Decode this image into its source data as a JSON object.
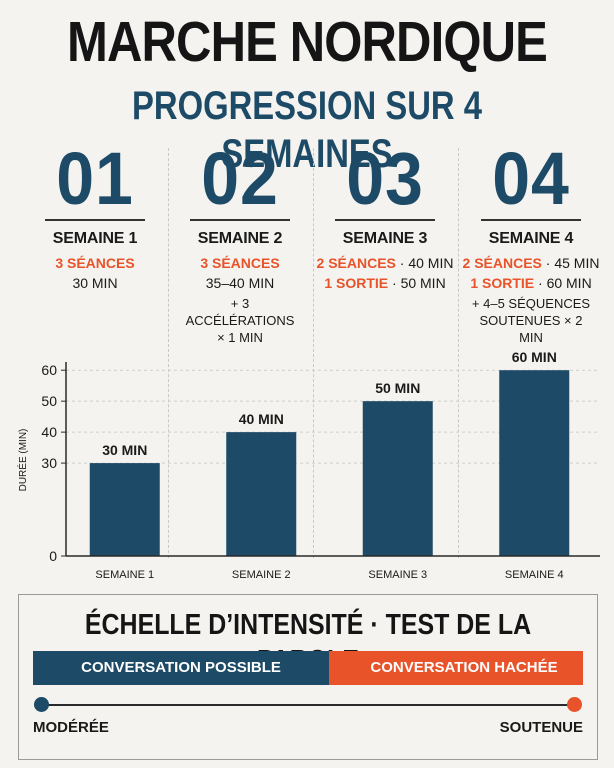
{
  "header": {
    "title": "MARCHE NORDIQUE",
    "subtitle": "PROGRESSION SUR 4 SEMAINES"
  },
  "weeks": [
    {
      "number": "01",
      "label": "SEMAINE 1",
      "line1_orange": "3 SÉANCES",
      "line1_sep": "",
      "line1_value": "",
      "line2_orange": "",
      "line2_sep": "",
      "line2_value": "30 MIN",
      "note": ""
    },
    {
      "number": "02",
      "label": "SEMAINE 2",
      "line1_orange": "3 SÉANCES",
      "line1_sep": "",
      "line1_value": "",
      "line2_orange": "",
      "line2_sep": "",
      "line2_value": "35–40 MIN",
      "note": "+ 3 ACCÉLÉRATIONS × 1 MIN"
    },
    {
      "number": "03",
      "label": "SEMAINE 3",
      "line1_orange": "2 SÉANCES",
      "line1_sep": "·",
      "line1_value": "40 MIN",
      "line2_orange": "1 SORTIE",
      "line2_sep": "·",
      "line2_value": "50 MIN",
      "note": ""
    },
    {
      "number": "04",
      "label": "SEMAINE 4",
      "line1_orange": "2 SÉANCES",
      "line1_sep": "·",
      "line1_value": "45 MIN",
      "line2_orange": "1 SORTIE",
      "line2_sep": "·",
      "line2_value": "60 MIN",
      "note": "+ 4–5 SÉQUENCES SOUTENUES × 2 MIN"
    }
  ],
  "chart_data": {
    "type": "bar",
    "categories": [
      "SEMAINE 1",
      "SEMAINE 2",
      "SEMAINE 3",
      "SEMAINE 4"
    ],
    "values": [
      30,
      40,
      50,
      60
    ],
    "data_labels": [
      "30 MIN",
      "40 MIN",
      "50 MIN",
      "60 MIN"
    ],
    "title": "",
    "xlabel": "",
    "ylabel": "DURÉE (MIN)",
    "yticks": [
      0,
      30,
      40,
      50,
      60
    ],
    "ylim": [
      0,
      62
    ],
    "grid": true,
    "bar_color": "#1d4a66"
  },
  "intensity": {
    "title": "ÉCHELLE D’INTENSITÉ · TEST DE LA PAROLE",
    "left_label": "CONVERSATION POSSIBLE",
    "right_label": "CONVERSATION HACHÉE",
    "left_end": "MODÉRÉE",
    "right_end": "SOUTENUE",
    "left_color": "#1d4a66",
    "right_color": "#e8532a"
  }
}
